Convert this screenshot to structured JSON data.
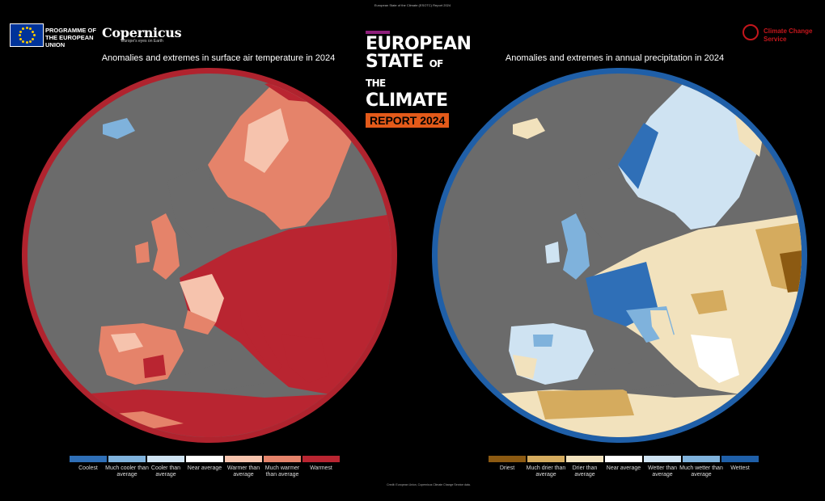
{
  "header": {
    "tiny_title": "European State of the Climate (ESOTC) Report 2024",
    "eu_programme": "PROGRAMME OF THE EUROPEAN UNION",
    "copernicus_name": "Copernicus",
    "copernicus_tagline": "Europe's eyes on Earth",
    "c3s_name": "Climate Change Service",
    "esotc_line1": "EUROPEAN",
    "esotc_line2a": "STATE",
    "esotc_line2b": "OF THE",
    "esotc_line3": "CLIMATE",
    "esotc_report": "REPORT 2024"
  },
  "maps": {
    "temperature": {
      "title": "Anomalies and extremes in surface air temperature in 2024",
      "ring_color": "#b0232e",
      "legend": [
        {
          "label": "Coolest",
          "color": "#2f6fb7"
        },
        {
          "label": "Much cooler than average",
          "color": "#7fb2dc"
        },
        {
          "label": "Cooler than average",
          "color": "#cfe3f2"
        },
        {
          "label": "Near average",
          "color": "#ffffff"
        },
        {
          "label": "Warmer than average",
          "color": "#f6c3ad"
        },
        {
          "label": "Much warmer than average",
          "color": "#e5836a"
        },
        {
          "label": "Warmest",
          "color": "#b92531"
        }
      ]
    },
    "precipitation": {
      "title": "Anomalies and extremes in annual precipitation in 2024",
      "ring_color": "#1f5fa8",
      "legend": [
        {
          "label": "Driest",
          "color": "#8c5a12"
        },
        {
          "label": "Much drier than average",
          "color": "#d5ab5e"
        },
        {
          "label": "Drier than average",
          "color": "#f2e2bd"
        },
        {
          "label": "Near average",
          "color": "#ffffff"
        },
        {
          "label": "Wetter than average",
          "color": "#cfe3f2"
        },
        {
          "label": "Much wetter than average",
          "color": "#7fb2dc"
        },
        {
          "label": "Wettest",
          "color": "#1f5fa8"
        }
      ]
    }
  },
  "credit": "Credit: European Union, Copernicus Climate Change Service data."
}
